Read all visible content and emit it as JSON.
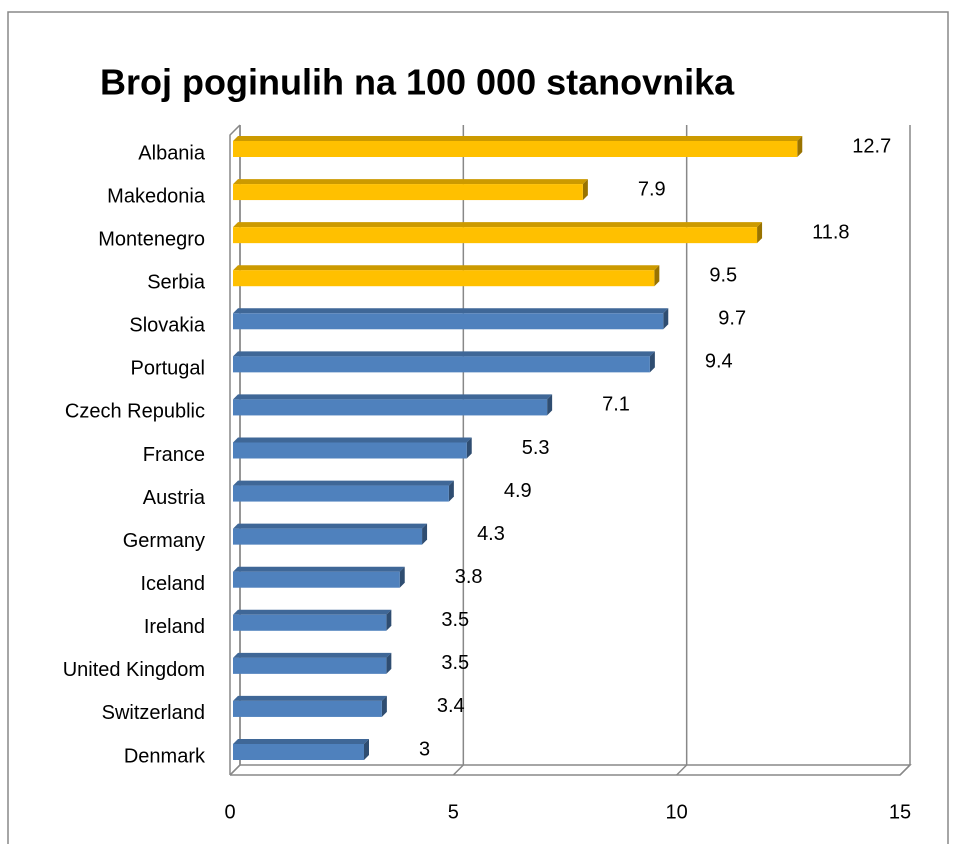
{
  "chart_data": {
    "type": "bar",
    "orientation": "horizontal",
    "title": "Broj poginulih na 100 000 stanovnika",
    "categories": [
      "Albania",
      "Makedonia",
      "Montenegro",
      "Serbia",
      "Slovakia",
      "Portugal",
      "Czech Republic",
      "France",
      "Austria",
      "Germany",
      "Iceland",
      "Ireland",
      "United Kingdom",
      "Switzerland",
      "Denmark"
    ],
    "values": [
      12.7,
      7.9,
      11.8,
      9.5,
      9.7,
      9.4,
      7.1,
      5.3,
      4.9,
      4.3,
      3.8,
      3.5,
      3.5,
      3.4,
      3
    ],
    "colors": [
      "#FFC000",
      "#FFC000",
      "#FFC000",
      "#FFC000",
      "#4F81BD",
      "#4F81BD",
      "#4F81BD",
      "#4F81BD",
      "#4F81BD",
      "#4F81BD",
      "#4F81BD",
      "#4F81BD",
      "#4F81BD",
      "#4F81BD",
      "#4F81BD"
    ],
    "xlim": [
      0,
      15
    ],
    "xticks": [
      0,
      5,
      10,
      15
    ],
    "grid": true
  }
}
